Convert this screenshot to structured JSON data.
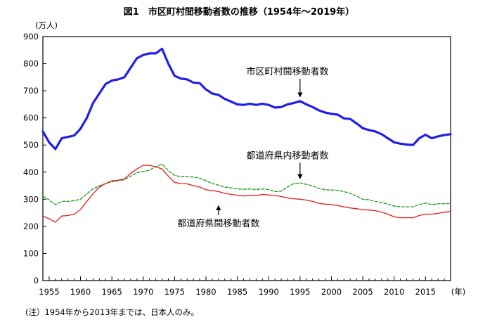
{
  "title": "図1　市区町村間移動者数の推移（1954年～2019年）",
  "footnote": "(注）1954年から2013年までは、日本人のみ。",
  "chart_data": {
    "type": "line",
    "title": "図1　市区町村間移動者数の推移（1954年～2019年）",
    "ylabel": "(万人)",
    "xlabel": "(年)",
    "ylim": [
      0,
      900
    ],
    "xlim": [
      1954,
      2019
    ],
    "yticks": [
      0,
      100,
      200,
      300,
      400,
      500,
      600,
      700,
      800,
      900
    ],
    "xticks": [
      1955,
      1960,
      1965,
      1970,
      1975,
      1980,
      1985,
      1990,
      1995,
      2000,
      2005,
      2010,
      2015
    ],
    "grid": false,
    "x": [
      1954,
      1955,
      1956,
      1957,
      1958,
      1959,
      1960,
      1961,
      1962,
      1963,
      1964,
      1965,
      1966,
      1967,
      1968,
      1969,
      1970,
      1971,
      1972,
      1973,
      1974,
      1975,
      1976,
      1977,
      1978,
      1979,
      1980,
      1981,
      1982,
      1983,
      1984,
      1985,
      1986,
      1987,
      1988,
      1989,
      1990,
      1991,
      1992,
      1993,
      1994,
      1995,
      1996,
      1997,
      1998,
      1999,
      2000,
      2001,
      2002,
      2003,
      2004,
      2005,
      2006,
      2007,
      2008,
      2009,
      2010,
      2011,
      2012,
      2013,
      2014,
      2015,
      2016,
      2017,
      2018,
      2019
    ],
    "series": [
      {
        "name": "市区町村間移動者数",
        "color": "#1f1fe6",
        "style": "solid",
        "values": [
          550,
          510,
          485,
          525,
          530,
          535,
          560,
          600,
          655,
          690,
          725,
          738,
          742,
          750,
          785,
          820,
          832,
          838,
          838,
          855,
          800,
          755,
          745,
          742,
          730,
          728,
          705,
          690,
          685,
          670,
          660,
          650,
          648,
          652,
          648,
          652,
          648,
          638,
          640,
          650,
          655,
          662,
          650,
          640,
          628,
          620,
          615,
          612,
          598,
          596,
          580,
          562,
          555,
          550,
          540,
          525,
          510,
          505,
          502,
          500,
          525,
          538,
          525,
          532,
          537,
          540
        ]
      },
      {
        "name": "都道府県内移動者数",
        "color": "#1a9a1a",
        "style": "dashed",
        "values": [
          312,
          298,
          280,
          292,
          292,
          295,
          300,
          320,
          338,
          350,
          358,
          365,
          368,
          372,
          385,
          398,
          402,
          408,
          420,
          430,
          405,
          388,
          383,
          383,
          382,
          378,
          368,
          358,
          352,
          345,
          342,
          338,
          337,
          338,
          336,
          338,
          336,
          328,
          330,
          345,
          358,
          360,
          355,
          350,
          340,
          335,
          334,
          333,
          328,
          322,
          312,
          300,
          298,
          292,
          288,
          282,
          275,
          272,
          272,
          272,
          280,
          286,
          280,
          283,
          284,
          284
        ]
      },
      {
        "name": "都道府県間移動者数",
        "color": "#e81a1a",
        "style": "solid",
        "values": [
          238,
          228,
          215,
          238,
          240,
          245,
          262,
          292,
          320,
          345,
          358,
          368,
          370,
          375,
          395,
          412,
          425,
          425,
          420,
          412,
          385,
          362,
          358,
          357,
          350,
          345,
          335,
          332,
          328,
          322,
          318,
          315,
          312,
          315,
          313,
          318,
          316,
          314,
          310,
          305,
          302,
          300,
          297,
          292,
          285,
          282,
          280,
          277,
          272,
          268,
          265,
          262,
          260,
          258,
          252,
          245,
          235,
          232,
          232,
          232,
          240,
          245,
          245,
          248,
          252,
          255
        ]
      }
    ],
    "annotations": [
      {
        "text": "市区町村間移動者数",
        "x": 1993,
        "y": 760,
        "arrow_to": [
          1995,
          662
        ]
      },
      {
        "text": "都道府県内移動者数",
        "x": 1993,
        "y": 450,
        "arrow_to": [
          1995,
          360
        ]
      },
      {
        "text": "都道府県間移動者数",
        "x": 1982,
        "y": 200,
        "arrow_to": [
          1982,
          292
        ]
      }
    ]
  }
}
